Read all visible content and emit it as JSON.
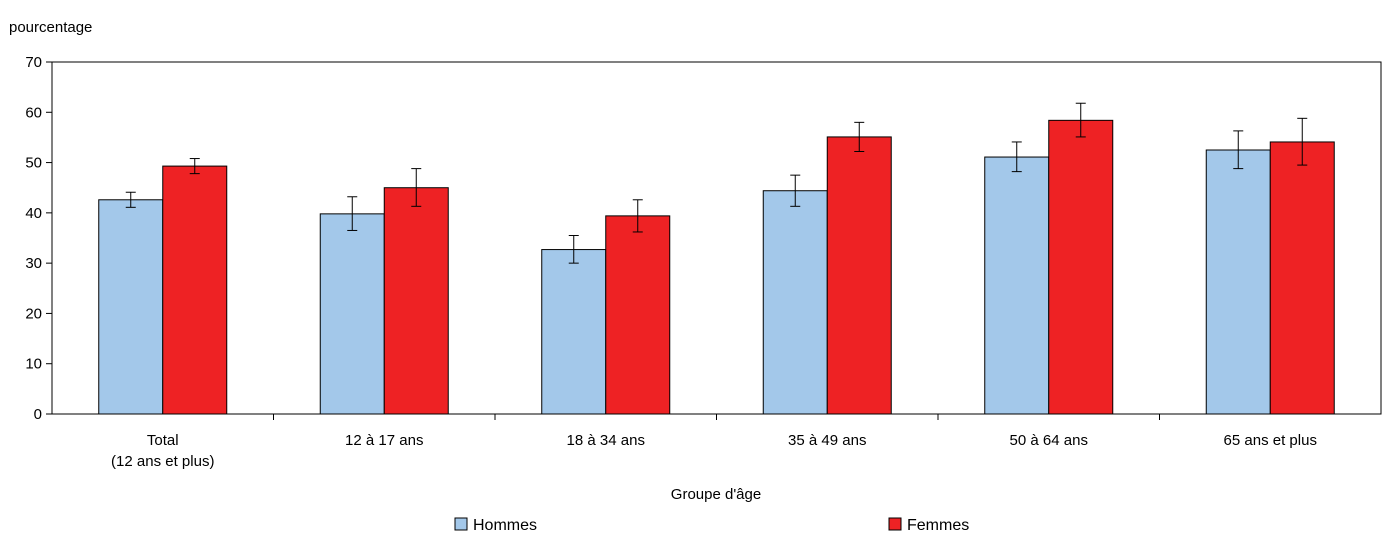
{
  "chart_data": {
    "type": "bar",
    "ylabel": "pourcentage",
    "xlabel": "Groupe d'âge",
    "ylim": [
      0,
      70
    ],
    "yticks": [
      0,
      10,
      20,
      30,
      40,
      50,
      60,
      70
    ],
    "categories": [
      [
        "Total",
        "(12 ans et plus)"
      ],
      [
        "12 à 17 ans"
      ],
      [
        "18 à 34 ans"
      ],
      [
        "35 à 49 ans"
      ],
      [
        "50 à 64 ans"
      ],
      [
        "65 ans et plus"
      ]
    ],
    "series": [
      {
        "name": "Hommes",
        "color": "#a3c8ea",
        "values": [
          42.6,
          39.8,
          32.7,
          44.4,
          51.1,
          52.5
        ],
        "error_low": [
          41.1,
          36.5,
          30.0,
          41.3,
          48.2,
          48.8
        ],
        "error_high": [
          44.1,
          43.2,
          35.5,
          47.5,
          54.1,
          56.3
        ]
      },
      {
        "name": "Femmes",
        "color": "#ee2224",
        "values": [
          49.3,
          45.0,
          39.4,
          55.1,
          58.4,
          54.1
        ],
        "error_low": [
          47.8,
          41.3,
          36.2,
          52.2,
          55.1,
          49.5
        ],
        "error_high": [
          50.8,
          48.8,
          42.6,
          58.0,
          61.8,
          58.8
        ]
      }
    ],
    "legend_position": "bottom",
    "grid": false
  }
}
